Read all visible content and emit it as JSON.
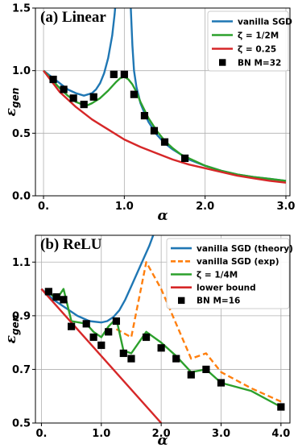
{
  "chart_data": [
    {
      "type": "line",
      "title": "(a) Linear",
      "xlabel": "α",
      "ylabel": "ε",
      "ylabel_sub": "gen",
      "xlim": [
        -0.1,
        3.05
      ],
      "ylim": [
        0.0,
        1.5
      ],
      "xticks": [
        {
          "v": 0,
          "label": "0."
        },
        {
          "v": 1,
          "label": "1.0"
        },
        {
          "v": 2,
          "label": "2.0"
        },
        {
          "v": 3,
          "label": "3.0"
        }
      ],
      "yticks": [
        {
          "v": 0,
          "label": "0.0"
        },
        {
          "v": 0.5,
          "label": "0.5"
        },
        {
          "v": 1.0,
          "label": "1.0"
        },
        {
          "v": 1.5,
          "label": "1.5"
        }
      ],
      "grid": true,
      "legend_position": "top-right",
      "series": [
        {
          "name": "vanilla SGD",
          "kind": "line",
          "color": "#1f77b4",
          "x": [
            0,
            0.1,
            0.2,
            0.3,
            0.4,
            0.5,
            0.6,
            0.65,
            0.7,
            0.75,
            0.8,
            0.85,
            0.88,
            0.9,
            0.92,
            0.93,
            1.07,
            1.08,
            1.1,
            1.12,
            1.15,
            1.2,
            1.25,
            1.3,
            1.4,
            1.5,
            1.6,
            1.7,
            1.8,
            2.0,
            2.2,
            2.4,
            2.6,
            2.8,
            3.0
          ],
          "y": [
            1.0,
            0.95,
            0.9,
            0.85,
            0.82,
            0.8,
            0.82,
            0.85,
            0.9,
            0.98,
            1.1,
            1.28,
            1.45,
            1.6,
            1.55,
            1.6,
            1.6,
            1.5,
            1.2,
            1.0,
            0.87,
            0.74,
            0.66,
            0.59,
            0.49,
            0.42,
            0.37,
            0.33,
            0.29,
            0.24,
            0.2,
            0.17,
            0.15,
            0.135,
            0.12
          ]
        },
        {
          "name": "ζ = 1/2M",
          "kind": "line",
          "color": "#2ca02c",
          "x": [
            0,
            0.1,
            0.2,
            0.3,
            0.4,
            0.5,
            0.55,
            0.6,
            0.7,
            0.8,
            0.9,
            0.95,
            1.0,
            1.05,
            1.1,
            1.15,
            1.2,
            1.3,
            1.4,
            1.5,
            1.6,
            1.7,
            1.8,
            2.0,
            2.2,
            2.4,
            2.6,
            2.8,
            3.0
          ],
          "y": [
            1.0,
            0.93,
            0.86,
            0.8,
            0.75,
            0.725,
            0.725,
            0.74,
            0.78,
            0.84,
            0.91,
            0.94,
            0.95,
            0.93,
            0.89,
            0.83,
            0.75,
            0.62,
            0.52,
            0.44,
            0.38,
            0.33,
            0.3,
            0.24,
            0.2,
            0.17,
            0.15,
            0.135,
            0.12
          ]
        },
        {
          "name": "ζ = 0.25",
          "kind": "line",
          "color": "#d62728",
          "x": [
            0,
            0.2,
            0.4,
            0.6,
            0.8,
            1.0,
            1.2,
            1.4,
            1.6,
            1.8,
            2.0,
            2.2,
            2.4,
            2.6,
            2.8,
            3.0
          ],
          "y": [
            1.0,
            0.83,
            0.71,
            0.61,
            0.53,
            0.45,
            0.39,
            0.34,
            0.29,
            0.25,
            0.22,
            0.19,
            0.16,
            0.14,
            0.12,
            0.105
          ]
        },
        {
          "name": "BN M=32",
          "kind": "scatter",
          "color": "#000000",
          "x": [
            0.12,
            0.25,
            0.37,
            0.5,
            0.62,
            0.87,
            1.0,
            1.12,
            1.25,
            1.37,
            1.5,
            1.75
          ],
          "y": [
            0.93,
            0.85,
            0.78,
            0.73,
            0.79,
            0.97,
            0.97,
            0.81,
            0.64,
            0.52,
            0.43,
            0.3
          ]
        }
      ]
    },
    {
      "type": "line",
      "title": "(b) ReLU",
      "xlabel": "α",
      "ylabel": "ε",
      "ylabel_sub": "gen",
      "xlim": [
        -0.1,
        4.15
      ],
      "ylim": [
        0.5,
        1.2
      ],
      "xticks": [
        {
          "v": 0,
          "label": "0."
        },
        {
          "v": 1,
          "label": "1.0"
        },
        {
          "v": 2,
          "label": "2.0"
        },
        {
          "v": 3,
          "label": "3.0"
        },
        {
          "v": 4,
          "label": "4.0"
        }
      ],
      "yticks": [
        {
          "v": 0.5,
          "label": "0.5"
        },
        {
          "v": 0.7,
          "label": "0.7"
        },
        {
          "v": 0.9,
          "label": "0.9"
        },
        {
          "v": 1.1,
          "label": "1.1"
        }
      ],
      "grid": true,
      "legend_position": "top-right",
      "series": [
        {
          "name": "vanilla SGD (theory)",
          "kind": "line",
          "color": "#1f77b4",
          "x": [
            0,
            0.2,
            0.4,
            0.6,
            0.8,
            1.0,
            1.1,
            1.2,
            1.3,
            1.4,
            1.5,
            1.6,
            1.7,
            1.8,
            1.85,
            1.9
          ],
          "y": [
            1.0,
            0.96,
            0.93,
            0.9,
            0.88,
            0.875,
            0.88,
            0.895,
            0.92,
            0.96,
            1.01,
            1.06,
            1.11,
            1.16,
            1.19,
            1.22
          ]
        },
        {
          "name": "vanilla SGD (exp)",
          "kind": "dashed",
          "color": "#ff7f0e",
          "x": [
            1.25,
            1.5,
            1.75,
            2.0,
            2.25,
            2.5,
            2.75,
            3.0,
            3.5,
            4.0
          ],
          "y": [
            0.85,
            0.82,
            1.1,
            1.0,
            0.87,
            0.74,
            0.76,
            0.69,
            0.63,
            0.58
          ]
        },
        {
          "name": "ζ = 1/4M",
          "kind": "line",
          "color": "#2ca02c",
          "x": [
            0.12,
            0.25,
            0.37,
            0.5,
            0.75,
            0.87,
            1.0,
            1.12,
            1.25,
            1.37,
            1.5,
            1.75,
            2.0,
            2.25,
            2.5,
            2.75,
            3.0,
            3.5,
            4.0
          ],
          "y": [
            0.99,
            0.96,
            1.0,
            0.88,
            0.87,
            0.84,
            0.82,
            0.86,
            0.89,
            0.77,
            0.76,
            0.84,
            0.8,
            0.75,
            0.69,
            0.7,
            0.65,
            0.62,
            0.56
          ]
        },
        {
          "name": "lower bound",
          "kind": "line",
          "color": "#d62728",
          "x": [
            0,
            2.0
          ],
          "y": [
            1.0,
            0.5
          ]
        },
        {
          "name": "BN M=16",
          "kind": "scatter",
          "color": "#000000",
          "x": [
            0.12,
            0.25,
            0.37,
            0.5,
            0.75,
            0.87,
            1.0,
            1.12,
            1.25,
            1.37,
            1.5,
            1.75,
            2.0,
            2.25,
            2.5,
            2.75,
            3.0,
            4.0
          ],
          "y": [
            0.99,
            0.97,
            0.96,
            0.86,
            0.87,
            0.82,
            0.79,
            0.84,
            0.88,
            0.76,
            0.74,
            0.82,
            0.78,
            0.74,
            0.68,
            0.7,
            0.65,
            0.56
          ]
        }
      ]
    }
  ]
}
